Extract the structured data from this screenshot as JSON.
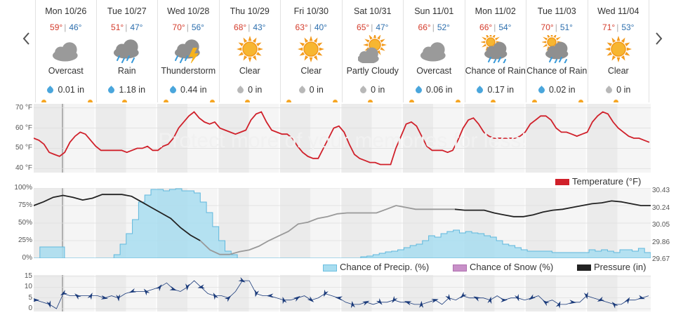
{
  "nav": {
    "prev_icon": "chevron-left-icon",
    "next_icon": "chevron-right-icon"
  },
  "days": [
    {
      "name": "Mon 10/26",
      "hi": "59°",
      "lo": "46°",
      "icon": "cloudy",
      "condition": "Overcast",
      "precip": "0.01 in",
      "drop": "blue"
    },
    {
      "name": "Tue 10/27",
      "hi": "51°",
      "lo": "47°",
      "icon": "rain",
      "condition": "Rain",
      "precip": "1.18 in",
      "drop": "blue"
    },
    {
      "name": "Wed 10/28",
      "hi": "70°",
      "lo": "56°",
      "icon": "thunderstorm",
      "condition": "Thunderstorm",
      "precip": "0.44 in",
      "drop": "blue"
    },
    {
      "name": "Thu 10/29",
      "hi": "68°",
      "lo": "43°",
      "icon": "sun",
      "condition": "Clear",
      "precip": "0 in",
      "drop": "gray"
    },
    {
      "name": "Fri 10/30",
      "hi": "63°",
      "lo": "40°",
      "icon": "sun",
      "condition": "Clear",
      "precip": "0 in",
      "drop": "gray"
    },
    {
      "name": "Sat 10/31",
      "hi": "65°",
      "lo": "47°",
      "icon": "partly-cloudy",
      "condition": "Partly Cloudy",
      "precip": "0 in",
      "drop": "gray"
    },
    {
      "name": "Sun 11/01",
      "hi": "66°",
      "lo": "52°",
      "icon": "cloudy",
      "condition": "Overcast",
      "precip": "0.06 in",
      "drop": "blue"
    },
    {
      "name": "Mon 11/02",
      "hi": "66°",
      "lo": "54°",
      "icon": "sun-rain",
      "condition": "Chance of Rain",
      "precip": "0.17 in",
      "drop": "blue"
    },
    {
      "name": "Tue 11/03",
      "hi": "70°",
      "lo": "51°",
      "icon": "sun-rain",
      "condition": "Chance of Rain",
      "precip": "0.02 in",
      "drop": "blue"
    },
    {
      "name": "Wed 11/04",
      "hi": "71°",
      "lo": "53°",
      "icon": "sun",
      "condition": "Clear",
      "precip": "0 in",
      "drop": "gray"
    }
  ],
  "temp_chart": {
    "y_ticks": [
      "70 °F",
      "60 °F",
      "50 °F",
      "40 °F"
    ],
    "legend": "Temperature (°F)",
    "line_color": "#d0202a",
    "watermark": "Protect more of your memories for less!"
  },
  "precip_chart": {
    "left_ticks": [
      "100%",
      "75%",
      "50%",
      "25%",
      "0%"
    ],
    "right_ticks": [
      "30.43",
      "30.24",
      "30.05",
      "29.86",
      "29.67"
    ],
    "legend_precip": "Chance of Precip. (%)",
    "legend_snow": "Chance of Snow (%)",
    "legend_pressure": "Pressure (in)",
    "precip_color": "#a8ddf0",
    "snow_color": "#c890c8",
    "pressure_color": "#222222"
  },
  "wind_chart": {
    "y_ticks": [
      "15",
      "10",
      "5",
      "0"
    ],
    "barb_color": "#1a3a7a"
  },
  "chart_data": [
    {
      "type": "line",
      "title": "",
      "ylabel": "Temperature (°F)",
      "ylim": [
        38,
        72
      ],
      "series": [
        {
          "name": "Temperature (°F)",
          "x": [
            0,
            2,
            4,
            6,
            8,
            10,
            12,
            14,
            16,
            18,
            20,
            22,
            24,
            26,
            28,
            30,
            32,
            34,
            36,
            38,
            40,
            42,
            44,
            46,
            48,
            50,
            52,
            54,
            56,
            58,
            60,
            62,
            64,
            66,
            68,
            70,
            72,
            74,
            76,
            78,
            80,
            82,
            84,
            86,
            88,
            90,
            92,
            94,
            96,
            98,
            100,
            102,
            104,
            106,
            108,
            110,
            112,
            114,
            116,
            118,
            120,
            122,
            124,
            126,
            128,
            130,
            132,
            134,
            136,
            138,
            140,
            142,
            144,
            146,
            148,
            150,
            152,
            154,
            156,
            158,
            160,
            162,
            164,
            166,
            168,
            170,
            172,
            174,
            176,
            178,
            180,
            182,
            184,
            186,
            188,
            190,
            192,
            194,
            196,
            198,
            200,
            202,
            204,
            206,
            208,
            210,
            212,
            214,
            216,
            218,
            220,
            222,
            224,
            226,
            228,
            230,
            232,
            234,
            236,
            238
          ],
          "values": [
            55,
            54,
            52,
            48,
            47,
            46,
            48,
            53,
            56,
            58,
            57,
            54,
            51,
            49,
            49,
            49,
            49,
            49,
            48,
            49,
            50,
            50,
            51,
            49,
            49,
            51,
            52,
            55,
            60,
            63,
            66,
            68,
            65,
            63,
            62,
            63,
            60,
            59,
            58,
            57,
            58,
            59,
            64,
            67,
            68,
            63,
            59,
            58,
            57,
            57,
            55,
            51,
            48,
            46,
            45,
            45,
            50,
            55,
            60,
            61,
            58,
            52,
            47,
            45,
            44,
            43,
            43,
            42,
            42,
            42,
            50,
            56,
            62,
            63,
            61,
            56,
            51,
            49,
            49,
            49,
            48,
            49,
            54,
            60,
            64,
            65,
            62,
            58,
            56,
            55,
            55,
            55,
            55,
            55,
            56,
            58,
            62,
            64,
            66,
            66,
            64,
            60,
            58,
            58,
            57,
            56,
            57,
            58,
            63,
            66,
            68,
            67,
            63,
            60,
            58,
            56,
            55,
            55,
            54,
            53
          ]
        }
      ]
    },
    {
      "type": "area",
      "title": "",
      "ylim": [
        0,
        100
      ],
      "series": [
        {
          "name": "Chance of Precip. (%)",
          "values": [
            0,
            16,
            16,
            16,
            16,
            0,
            0,
            0,
            0,
            0,
            0,
            0,
            0,
            5,
            20,
            35,
            55,
            80,
            90,
            98,
            98,
            96,
            98,
            99,
            96,
            96,
            93,
            80,
            65,
            45,
            25,
            10,
            5,
            0,
            0,
            0,
            0,
            0,
            0,
            0,
            0,
            0,
            0,
            0,
            0,
            0,
            0,
            0,
            0,
            0,
            0,
            0,
            0,
            2,
            3,
            5,
            7,
            9,
            10,
            12,
            15,
            18,
            20,
            25,
            32,
            30,
            35,
            38,
            40,
            36,
            38,
            36,
            35,
            32,
            30,
            25,
            20,
            18,
            15,
            12,
            10,
            10,
            10,
            10,
            8,
            8,
            8,
            8,
            8,
            8,
            12,
            10,
            12,
            10,
            8,
            12,
            12,
            10,
            14,
            8
          ]
        },
        {
          "name": "Chance of Snow (%)",
          "values": [
            0
          ]
        },
        {
          "name": "Pressure (in)",
          "ylim": [
            29.67,
            30.43
          ],
          "values": [
            30.24,
            30.28,
            30.33,
            30.35,
            30.33,
            30.3,
            30.32,
            30.36,
            30.36,
            30.36,
            30.34,
            30.28,
            30.22,
            30.16,
            30.1,
            30.0,
            29.92,
            29.86,
            29.76,
            29.71,
            29.71,
            29.74,
            29.76,
            29.8,
            29.86,
            29.91,
            29.96,
            30.04,
            30.06,
            30.1,
            30.12,
            30.15,
            30.16,
            30.16,
            30.16,
            30.16,
            30.2,
            30.24,
            30.22,
            30.2,
            30.2,
            30.2,
            30.2,
            30.2,
            30.19,
            30.19,
            30.19,
            30.16,
            30.14,
            30.12,
            30.12,
            30.14,
            30.17,
            30.19,
            30.2,
            30.22,
            30.24,
            30.26,
            30.27,
            30.29,
            30.28,
            30.26,
            30.24,
            30.24
          ]
        }
      ]
    },
    {
      "type": "line",
      "title": "",
      "ylabel": "Wind",
      "ylim": [
        0,
        15
      ],
      "series": [
        {
          "name": "Wind",
          "values": [
            4,
            3,
            2,
            0,
            7,
            6,
            6,
            6,
            6,
            6,
            5,
            6,
            5,
            7,
            8,
            8,
            8,
            9,
            10,
            12,
            9,
            8,
            10,
            13,
            10,
            7,
            6,
            6,
            5,
            8,
            13,
            13,
            7,
            6,
            6,
            5,
            4,
            4,
            5,
            6,
            4,
            5,
            7,
            6,
            5,
            3,
            2,
            2,
            3,
            2,
            3,
            3,
            4,
            3,
            3,
            2,
            2,
            3,
            4,
            2,
            5,
            4,
            6,
            5,
            5,
            5,
            4,
            6,
            4,
            5,
            5,
            4,
            5,
            6,
            3,
            4,
            2,
            2,
            3,
            3,
            6,
            5,
            4,
            3,
            2,
            2,
            4,
            4,
            5,
            6
          ]
        }
      ]
    }
  ]
}
